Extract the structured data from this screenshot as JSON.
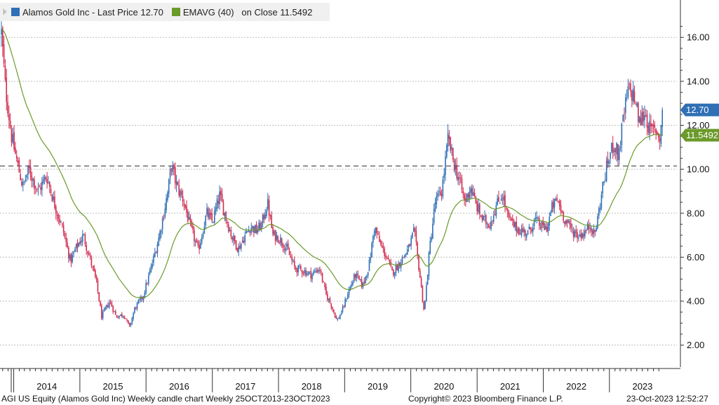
{
  "legend": {
    "pin_icon": "pin-icon",
    "price_label": "Alamos Gold Inc - Last Price 12.70",
    "ema_label": "EMAVG (40)   on Close 11.5492",
    "price_color": "#2f6fb5",
    "ema_color": "#6b9a2a"
  },
  "footer": {
    "description": "AGI US Equity (Alamos Gold Inc) Weekly candle chart  Weekly 25OCT2013-23OCT2023",
    "copyright": "Copyright© 2023 Bloomberg Finance L.P.",
    "timestamp": "23-Oct-2023 12:52:27"
  },
  "chart_data": {
    "type": "candlestick",
    "frequency": "Weekly",
    "ticker": "AGI US Equity",
    "ylim": [
      1.0,
      17.7
    ],
    "y_ticks": [
      2.0,
      4.0,
      6.0,
      8.0,
      10.0,
      12.0,
      14.0,
      16.0
    ],
    "y_tick_labels": [
      "2.00",
      "4.00",
      "6.00",
      "8.00",
      "10.00",
      "12.00",
      "14.00",
      "16.00"
    ],
    "x_tick_labels": [
      "2014",
      "2015",
      "2016",
      "2017",
      "2018",
      "2019",
      "2020",
      "2021",
      "2022",
      "2023"
    ],
    "x_range": [
      "2013-10-25",
      "2023-10-23"
    ],
    "reference_line": 10.15,
    "last_price": 12.7,
    "last_price_label": "12.70",
    "ema_last": 11.5492,
    "ema_last_label": "11.5492",
    "colors": {
      "up": "#2f6fb5",
      "down": "#d22a4e",
      "ema": "#6b9a2a",
      "grid": "#bdbdbd"
    },
    "price_path": [
      [
        "2013-10-25",
        16.2
      ],
      [
        "2013-11-15",
        13.8
      ],
      [
        "2013-12-20",
        11.5
      ],
      [
        "2014-01-20",
        10.3
      ],
      [
        "2014-02-20",
        9.2
      ],
      [
        "2014-03-25",
        10.0
      ],
      [
        "2014-05-15",
        9.0
      ],
      [
        "2014-07-01",
        9.7
      ],
      [
        "2014-08-15",
        8.4
      ],
      [
        "2014-10-01",
        7.2
      ],
      [
        "2014-11-10",
        5.8
      ],
      [
        "2014-12-10",
        6.4
      ],
      [
        "2015-01-20",
        7.0
      ],
      [
        "2015-02-20",
        6.1
      ],
      [
        "2015-04-01",
        4.9
      ],
      [
        "2015-05-01",
        3.3
      ],
      [
        "2015-06-15",
        4.0
      ],
      [
        "2015-07-20",
        3.3
      ],
      [
        "2015-09-01",
        3.4
      ],
      [
        "2015-10-01",
        2.8
      ],
      [
        "2015-11-01",
        3.7
      ],
      [
        "2015-12-15",
        4.2
      ],
      [
        "2016-02-01",
        5.6
      ],
      [
        "2016-03-15",
        7.0
      ],
      [
        "2016-05-01",
        9.0
      ],
      [
        "2016-05-20",
        10.2
      ],
      [
        "2016-06-20",
        9.2
      ],
      [
        "2016-07-25",
        8.6
      ],
      [
        "2016-09-01",
        7.4
      ],
      [
        "2016-10-15",
        6.3
      ],
      [
        "2016-12-01",
        8.0
      ],
      [
        "2017-01-01",
        7.6
      ],
      [
        "2017-02-10",
        8.8
      ],
      [
        "2017-03-20",
        7.7
      ],
      [
        "2017-04-20",
        6.9
      ],
      [
        "2017-05-25",
        6.4
      ],
      [
        "2017-07-01",
        7.0
      ],
      [
        "2017-08-01",
        7.4
      ],
      [
        "2017-09-01",
        7.2
      ],
      [
        "2017-10-01",
        7.5
      ],
      [
        "2017-11-01",
        8.5
      ],
      [
        "2017-12-01",
        7.0
      ],
      [
        "2018-01-01",
        6.9
      ],
      [
        "2018-02-15",
        6.4
      ],
      [
        "2018-04-01",
        5.5
      ],
      [
        "2018-05-15",
        5.4
      ],
      [
        "2018-07-01",
        5.2
      ],
      [
        "2018-08-15",
        5.5
      ],
      [
        "2018-09-20",
        4.3
      ],
      [
        "2018-10-20",
        3.8
      ],
      [
        "2018-11-20",
        3.1
      ],
      [
        "2018-12-20",
        3.6
      ],
      [
        "2019-01-20",
        4.4
      ],
      [
        "2019-03-01",
        5.2
      ],
      [
        "2019-04-10",
        4.7
      ],
      [
        "2019-05-15",
        5.6
      ],
      [
        "2019-06-15",
        7.4
      ],
      [
        "2019-07-15",
        6.6
      ],
      [
        "2019-08-15",
        6.1
      ],
      [
        "2019-09-20",
        5.3
      ],
      [
        "2019-10-20",
        5.6
      ],
      [
        "2019-11-20",
        6.0
      ],
      [
        "2019-12-20",
        6.4
      ],
      [
        "2020-01-20",
        7.2
      ],
      [
        "2020-02-15",
        5.5
      ],
      [
        "2020-03-15",
        3.5
      ],
      [
        "2020-04-15",
        6.5
      ],
      [
        "2020-05-15",
        8.5
      ],
      [
        "2020-06-20",
        9.0
      ],
      [
        "2020-07-25",
        11.4
      ],
      [
        "2020-08-25",
        10.3
      ],
      [
        "2020-09-25",
        9.5
      ],
      [
        "2020-10-25",
        8.5
      ],
      [
        "2020-11-25",
        9.2
      ],
      [
        "2020-12-25",
        8.4
      ],
      [
        "2021-02-01",
        7.7
      ],
      [
        "2021-03-10",
        7.5
      ],
      [
        "2021-04-15",
        8.3
      ],
      [
        "2021-05-20",
        8.9
      ],
      [
        "2021-06-20",
        7.8
      ],
      [
        "2021-07-25",
        7.4
      ],
      [
        "2021-09-01",
        7.2
      ],
      [
        "2021-10-10",
        7.1
      ],
      [
        "2021-11-15",
        7.7
      ],
      [
        "2021-12-20",
        7.4
      ],
      [
        "2022-01-20",
        7.3
      ],
      [
        "2022-02-20",
        8.3
      ],
      [
        "2022-03-20",
        8.6
      ],
      [
        "2022-04-25",
        7.8
      ],
      [
        "2022-06-01",
        7.3
      ],
      [
        "2022-07-10",
        7.0
      ],
      [
        "2022-08-15",
        7.1
      ],
      [
        "2022-09-20",
        7.5
      ],
      [
        "2022-10-10",
        7.0
      ],
      [
        "2022-10-25",
        7.6
      ],
      [
        "2022-11-25",
        9.2
      ],
      [
        "2022-12-25",
        10.4
      ],
      [
        "2023-01-25",
        11.2
      ],
      [
        "2023-02-20",
        10.6
      ],
      [
        "2023-03-20",
        12.4
      ],
      [
        "2023-04-15",
        13.6
      ],
      [
        "2023-05-15",
        13.4
      ],
      [
        "2023-06-15",
        12.1
      ],
      [
        "2023-07-15",
        12.6
      ],
      [
        "2023-08-15",
        11.7
      ],
      [
        "2023-09-15",
        11.8
      ],
      [
        "2023-10-05",
        11.4
      ],
      [
        "2023-10-23",
        12.7
      ]
    ]
  }
}
